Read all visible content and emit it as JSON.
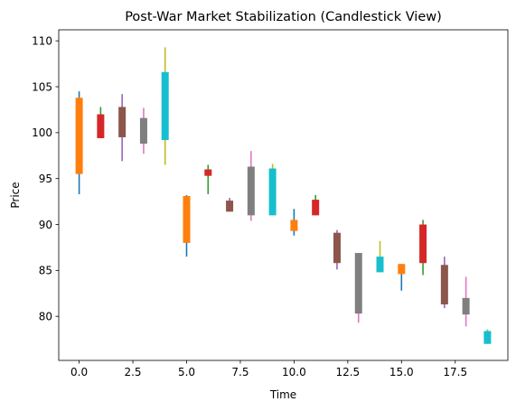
{
  "chart_data": {
    "type": "candlestick",
    "title": "Post-War Market Stabilization (Candlestick View)",
    "xlabel": "Time",
    "ylabel": "Price",
    "xlim": [
      -0.95,
      19.95
    ],
    "ylim": [
      75.2,
      111.2
    ],
    "xticks": [
      0,
      2.5,
      5,
      7.5,
      10,
      12.5,
      15,
      17.5
    ],
    "xtick_labels": [
      "0.0",
      "2.5",
      "5.0",
      "7.5",
      "10.0",
      "12.5",
      "15.0",
      "17.5"
    ],
    "yticks": [
      80,
      85,
      90,
      95,
      100,
      105,
      110
    ],
    "ytick_labels": [
      "80",
      "85",
      "90",
      "95",
      "100",
      "105",
      "110"
    ],
    "grid": false,
    "colors": [
      "#1f77b4",
      "#ff7f0e",
      "#2ca02c",
      "#d62728",
      "#9467bd",
      "#8c564b",
      "#e377c2",
      "#7f7f7f",
      "#bcbd22",
      "#17becf"
    ],
    "candles": [
      {
        "x": 0,
        "open": 95.5,
        "close": 103.8,
        "high": 104.5,
        "low": 93.3
      },
      {
        "x": 1,
        "open": 102.0,
        "close": 99.4,
        "high": 102.8,
        "low": 99.4
      },
      {
        "x": 2,
        "open": 102.8,
        "close": 99.5,
        "high": 104.2,
        "low": 96.9
      },
      {
        "x": 3,
        "open": 101.6,
        "close": 98.8,
        "high": 102.7,
        "low": 97.7
      },
      {
        "x": 4,
        "open": 99.2,
        "close": 106.6,
        "high": 109.3,
        "low": 96.5
      },
      {
        "x": 5,
        "open": 93.1,
        "close": 88.0,
        "high": 93.2,
        "low": 86.5
      },
      {
        "x": 6,
        "open": 96.0,
        "close": 95.3,
        "high": 96.5,
        "low": 93.3
      },
      {
        "x": 7,
        "open": 92.6,
        "close": 91.4,
        "high": 92.9,
        "low": 91.4
      },
      {
        "x": 8,
        "open": 96.3,
        "close": 91.0,
        "high": 98.0,
        "low": 90.4
      },
      {
        "x": 9,
        "open": 96.1,
        "close": 91.0,
        "high": 96.6,
        "low": 91.0
      },
      {
        "x": 10,
        "open": 90.5,
        "close": 89.3,
        "high": 91.7,
        "low": 88.8
      },
      {
        "x": 11,
        "open": 92.7,
        "close": 91.0,
        "high": 93.2,
        "low": 91.0
      },
      {
        "x": 12,
        "open": 89.1,
        "close": 85.8,
        "high": 89.4,
        "low": 85.1
      },
      {
        "x": 13,
        "open": 86.9,
        "close": 80.3,
        "high": 86.9,
        "low": 79.3
      },
      {
        "x": 14,
        "open": 86.5,
        "close": 84.8,
        "high": 88.2,
        "low": 84.8
      },
      {
        "x": 15,
        "open": 85.7,
        "close": 84.6,
        "high": 85.7,
        "low": 82.8
      },
      {
        "x": 16,
        "open": 90.0,
        "close": 85.8,
        "high": 90.5,
        "low": 84.5
      },
      {
        "x": 17,
        "open": 85.6,
        "close": 81.3,
        "high": 86.5,
        "low": 80.9
      },
      {
        "x": 18,
        "open": 82.0,
        "close": 80.2,
        "high": 84.3,
        "low": 78.9
      },
      {
        "x": 19,
        "open": 78.4,
        "close": 77.0,
        "high": 78.6,
        "low": 77.0
      }
    ]
  }
}
